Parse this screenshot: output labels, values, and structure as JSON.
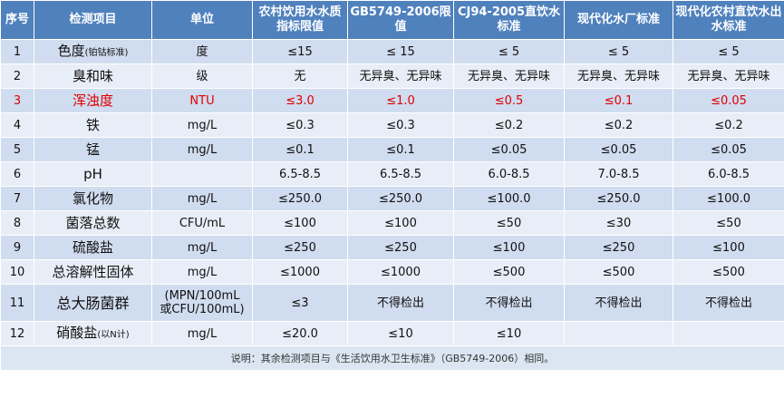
{
  "table": {
    "header": [
      "序号",
      "检测项目",
      "单位",
      "农村饮用水水质指标限值",
      "GB5749-2006限值",
      "CJ94-2005直饮水标准",
      "现代化水厂标准",
      "现代化农村直饮水出水标准"
    ],
    "rows": [
      {
        "no": "1",
        "item": "色度",
        "item_note": "(铂钴标准)",
        "unit": "度",
        "values": [
          "≤15",
          "≤ 15",
          "≤ 5",
          "≤ 5",
          "≤ 5"
        ]
      },
      {
        "no": "2",
        "item": "臭和味",
        "unit": "级",
        "values": [
          "无",
          "无异臭、无异味",
          "无异臭、无异味",
          "无异臭、无异味",
          "无异臭、无异味"
        ]
      },
      {
        "no": "3",
        "item": "浑浊度",
        "unit": "NTU",
        "values": [
          "≤3.0",
          "≤1.0",
          "≤0.5",
          "≤0.1",
          "≤0.05"
        ],
        "highlight": true
      },
      {
        "no": "4",
        "item": "铁",
        "unit": "mg/L",
        "values": [
          "≤0.3",
          "≤0.3",
          "≤0.2",
          "≤0.2",
          "≤0.2"
        ]
      },
      {
        "no": "5",
        "item": "锰",
        "unit": "mg/L",
        "values": [
          "≤0.1",
          "≤0.1",
          "≤0.05",
          "≤0.05",
          "≤0.05"
        ]
      },
      {
        "no": "6",
        "item": "pH",
        "unit": null,
        "values": [
          "6.5-8.5",
          "6.5-8.5",
          "6.0-8.5",
          "7.0-8.5",
          "6.0-8.5"
        ]
      },
      {
        "no": "7",
        "item": "氯化物",
        "unit": "mg/L",
        "values": [
          "≤250.0",
          "≤250.0",
          "≤100.0",
          "≤250.0",
          "≤100.0"
        ]
      },
      {
        "no": "8",
        "item": "菌落总数",
        "unit": "CFU/mL",
        "values": [
          "≤100",
          "≤100",
          "≤50",
          "≤30",
          "≤50"
        ]
      },
      {
        "no": "9",
        "item": "硫酸盐",
        "unit": "mg/L",
        "values": [
          "≤250",
          "≤250",
          "≤100",
          "≤250",
          "≤100"
        ]
      },
      {
        "no": "10",
        "item": "总溶解性固体",
        "unit": "mg/L",
        "values": [
          "≤1000",
          "≤1000",
          "≤500",
          "≤500",
          "≤500"
        ]
      },
      {
        "no": "11",
        "item": "总大肠菌群",
        "unit": [
          "(MPN/100mL",
          "或CFU/100mL)"
        ],
        "values": [
          "≤3",
          "不得检出",
          "不得检出",
          "不得检出",
          "不得检出"
        ]
      },
      {
        "no": "12",
        "item": "硝酸盐",
        "item_note": "(以N计)",
        "unit": "mg/L",
        "values": [
          "≤20.0",
          "≤10",
          "≤10"
        ]
      }
    ],
    "footnote": "说明：其余检测项目与《生活饮用水卫生标准》（GB5749-2006）相同。"
  }
}
